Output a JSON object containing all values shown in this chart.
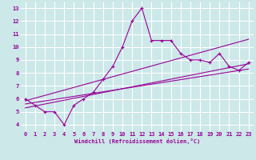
{
  "x": [
    0,
    1,
    2,
    3,
    4,
    5,
    6,
    7,
    8,
    9,
    10,
    11,
    12,
    13,
    14,
    15,
    16,
    17,
    18,
    19,
    20,
    21,
    22,
    23
  ],
  "y": [
    6.0,
    5.5,
    5.0,
    5.0,
    4.0,
    5.5,
    6.0,
    6.5,
    7.5,
    8.5,
    10.0,
    12.0,
    13.0,
    10.5,
    10.5,
    10.5,
    9.5,
    9.0,
    9.0,
    8.8,
    9.5,
    8.5,
    8.2,
    8.8
  ],
  "color": "#990099",
  "bg_color": "#cce8e8",
  "grid_color": "#ffffff",
  "xlabel": "Windchill (Refroidissement éolien,°C)",
  "xlim": [
    -0.5,
    23.5
  ],
  "ylim": [
    3.5,
    13.5
  ],
  "yticks": [
    4,
    5,
    6,
    7,
    8,
    9,
    10,
    11,
    12,
    13
  ],
  "xticks": [
    0,
    1,
    2,
    3,
    4,
    5,
    6,
    7,
    8,
    9,
    10,
    11,
    12,
    13,
    14,
    15,
    16,
    17,
    18,
    19,
    20,
    21,
    22,
    23
  ],
  "line1_start": 5.3,
  "line1_end": 8.7,
  "line2_start": 5.6,
  "line2_end": 8.3,
  "line3_start": 6.0,
  "line3_end": 8.8
}
